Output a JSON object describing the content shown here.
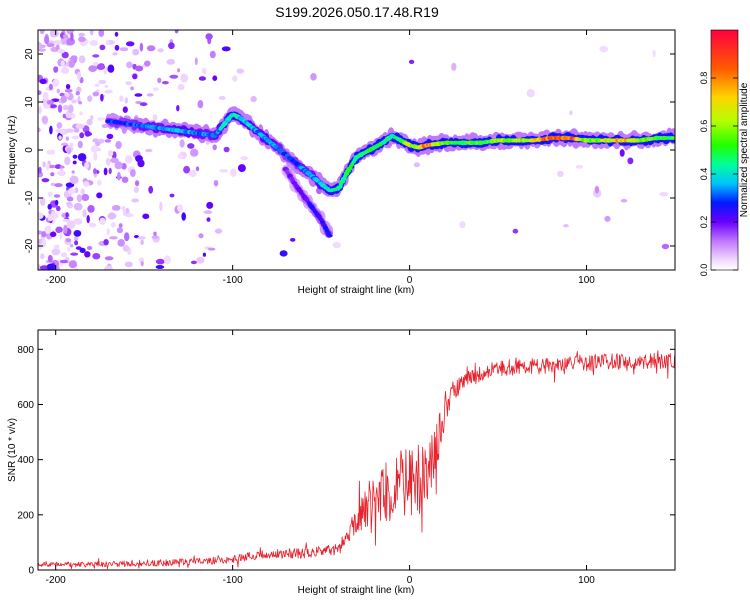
{
  "figure": {
    "title": "S199.2026.050.17.48.R19"
  },
  "colors": {
    "axis": "#000000",
    "snr_line": "#e8202a",
    "spectro_bg": "#ffffff"
  },
  "chart_data": [
    {
      "id": "spectrogram",
      "type": "heatmap",
      "title": "S199.2026.050.17.48.R19",
      "xlabel": "Height of straight line (km)",
      "ylabel": "Frequency (Hz)",
      "xlim": [
        -210,
        150
      ],
      "ylim": [
        -25,
        25
      ],
      "xticks": [
        -200,
        -100,
        0,
        100
      ],
      "yticks": [
        -20,
        -10,
        0,
        10,
        20
      ],
      "ridge": {
        "x": [
          -170,
          -160,
          -150,
          -140,
          -130,
          -120,
          -110,
          -100,
          -95,
          -90,
          -85,
          -80,
          -75,
          -70,
          -65,
          -60,
          -55,
          -50,
          -45,
          -40,
          -35,
          -30,
          -25,
          -20,
          -15,
          -10,
          -5,
          0,
          5,
          10,
          20,
          30,
          40,
          50,
          60,
          70,
          80,
          90,
          100,
          110,
          120,
          130,
          140,
          150
        ],
        "y": [
          6,
          5.5,
          5,
          4.5,
          4,
          3.5,
          3,
          7.5,
          6.5,
          5,
          3.5,
          2,
          0.5,
          -1,
          -2.5,
          -4,
          -5.5,
          -7,
          -8.5,
          -8,
          -4.5,
          -1.5,
          -0.5,
          0.5,
          1.5,
          3,
          2,
          1,
          0.5,
          1,
          1.5,
          1.5,
          1.5,
          2,
          2,
          2,
          2.5,
          2.5,
          2,
          2,
          2,
          2,
          2.5,
          2.5
        ],
        "amplitude": [
          0.3,
          0.3,
          0.35,
          0.35,
          0.4,
          0.35,
          0.35,
          0.45,
          0.4,
          0.4,
          0.35,
          0.4,
          0.35,
          0.3,
          0.3,
          0.35,
          0.35,
          0.4,
          0.45,
          0.5,
          0.5,
          0.5,
          0.5,
          0.5,
          0.5,
          0.45,
          0.5,
          0.65,
          0.7,
          0.85,
          0.55,
          0.55,
          0.55,
          0.6,
          0.65,
          0.7,
          0.9,
          0.95,
          0.6,
          0.65,
          0.8,
          0.6,
          0.55,
          0.55
        ]
      },
      "branch": {
        "x": [
          -70,
          -65,
          -60,
          -55,
          -50,
          -45
        ],
        "y": [
          -4,
          -7,
          -9.5,
          -12,
          -14.5,
          -18
        ],
        "amplitude": [
          0.2,
          0.2,
          0.22,
          0.25,
          0.25,
          0.28
        ]
      },
      "colorbar": {
        "label": "Normalized spectral amplitude",
        "ticks": [
          0.0,
          0.2,
          0.4,
          0.6,
          0.8
        ],
        "range": [
          0,
          1
        ]
      }
    },
    {
      "id": "snr",
      "type": "line",
      "xlabel": "Height of straight line (km)",
      "ylabel": "SNR (10 * v/v)",
      "xlim": [
        -210,
        150
      ],
      "ylim": [
        0,
        870
      ],
      "xticks": [
        -200,
        -100,
        0,
        100
      ],
      "yticks": [
        0,
        200,
        400,
        600,
        800
      ],
      "trend": {
        "x": [
          -210,
          -180,
          -150,
          -120,
          -100,
          -90,
          -80,
          -70,
          -60,
          -50,
          -40,
          -35,
          -30,
          -25,
          -20,
          -15,
          -10,
          -5,
          0,
          5,
          10,
          15,
          20,
          25,
          30,
          40,
          50,
          60,
          70,
          80,
          90,
          100,
          110,
          120,
          130,
          140,
          150
        ],
        "y": [
          20,
          20,
          25,
          30,
          40,
          50,
          55,
          60,
          60,
          70,
          75,
          130,
          180,
          230,
          260,
          280,
          300,
          310,
          320,
          330,
          360,
          430,
          580,
          650,
          690,
          710,
          730,
          740,
          740,
          740,
          750,
          750,
          755,
          755,
          755,
          760,
          760
        ]
      },
      "noise_amplitude": {
        "x": [
          -210,
          -100,
          -40,
          -30,
          -20,
          -10,
          0,
          10,
          15,
          25,
          40,
          150
        ],
        "y": [
          8,
          15,
          20,
          50,
          100,
          120,
          130,
          120,
          90,
          40,
          30,
          30
        ]
      }
    }
  ]
}
